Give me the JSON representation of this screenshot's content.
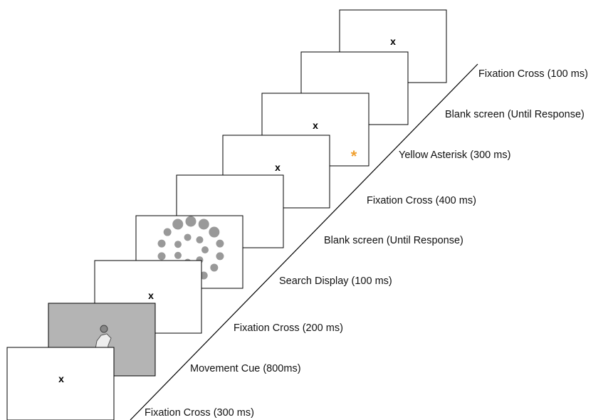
{
  "frames": [
    {
      "label": "Fixation Cross (300 ms)",
      "marker": "x"
    },
    {
      "label": "Movement Cue (800ms)"
    },
    {
      "label": "Fixation Cross (200 ms)",
      "marker": "x"
    },
    {
      "label": "Search Display (100 ms)"
    },
    {
      "label": "Blank screen (Until Response)"
    },
    {
      "label": "Fixation Cross (400 ms)",
      "marker": "x"
    },
    {
      "label": "Yellow Asterisk (300 ms)",
      "marker": "x",
      "asterisk": "*"
    },
    {
      "label": "Blank screen (Until Response)"
    },
    {
      "label": "Fixation Cross (100 ms)",
      "marker": "x"
    }
  ]
}
